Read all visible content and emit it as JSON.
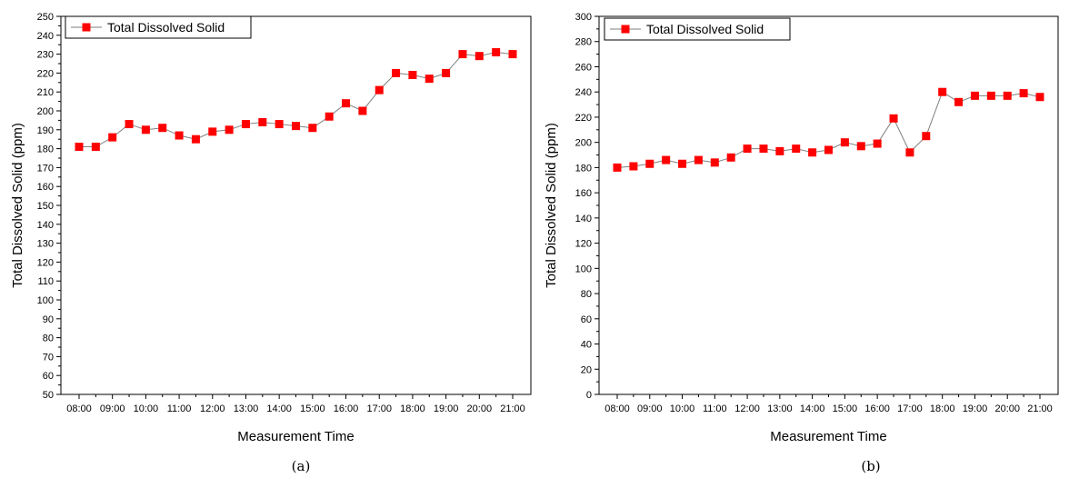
{
  "figure": {
    "captions": [
      "(a)",
      "(b)"
    ]
  },
  "chart_data": [
    {
      "type": "line",
      "title": "",
      "xlabel": "Measurement Time",
      "ylabel": "Total Dissolved Solid (ppm)",
      "x_tick_labels": [
        "08:00",
        "09:00",
        "10:00",
        "11:00",
        "12:00",
        "13:00",
        "14:00",
        "15:00",
        "16:00",
        "17:00",
        "18:00",
        "19:00",
        "20:00",
        "21:00"
      ],
      "x": [
        "08:00",
        "08:30",
        "09:00",
        "09:30",
        "10:00",
        "10:30",
        "11:00",
        "11:30",
        "12:00",
        "12:30",
        "13:00",
        "13:30",
        "14:00",
        "14:30",
        "15:00",
        "15:30",
        "16:00",
        "16:30",
        "17:00",
        "17:30",
        "18:00",
        "18:30",
        "19:00",
        "19:30",
        "20:00",
        "20:30",
        "21:00"
      ],
      "ylim": [
        50,
        250
      ],
      "y_ticks": [
        50,
        60,
        70,
        80,
        90,
        100,
        110,
        120,
        130,
        140,
        150,
        160,
        170,
        180,
        190,
        200,
        210,
        220,
        230,
        240,
        250
      ],
      "grid": false,
      "legend_position": "top-left",
      "series": [
        {
          "name": "Total Dissolved Solid",
          "color": "#ff0000",
          "line_color": "#7f7f7f",
          "marker": "square",
          "values": [
            181,
            181,
            186,
            193,
            190,
            191,
            187,
            185,
            189,
            190,
            193,
            194,
            193,
            192,
            191,
            197,
            204,
            200,
            211,
            220,
            219,
            217,
            220,
            230,
            229,
            231,
            230
          ]
        }
      ]
    },
    {
      "type": "line",
      "title": "",
      "xlabel": "Measurement Time",
      "ylabel": "Total Dissolved Solid (ppm)",
      "x_tick_labels": [
        "08:00",
        "09:00",
        "10:00",
        "11:00",
        "12:00",
        "13:00",
        "14:00",
        "15:00",
        "16:00",
        "17:00",
        "18:00",
        "19:00",
        "20:00",
        "21:00"
      ],
      "x": [
        "08:00",
        "08:30",
        "09:00",
        "09:30",
        "10:00",
        "10:30",
        "11:00",
        "11:30",
        "12:00",
        "12:30",
        "13:00",
        "13:30",
        "14:00",
        "14:30",
        "15:00",
        "15:30",
        "16:00",
        "16:30",
        "17:00",
        "17:30",
        "18:00",
        "18:30",
        "19:00",
        "19:30",
        "20:00",
        "20:30",
        "21:00"
      ],
      "ylim": [
        0,
        300
      ],
      "y_ticks": [
        0,
        20,
        40,
        60,
        80,
        100,
        120,
        140,
        160,
        180,
        200,
        220,
        240,
        260,
        280,
        300
      ],
      "grid": false,
      "legend_position": "top-left",
      "series": [
        {
          "name": "Total Dissolved Solid",
          "color": "#ff0000",
          "line_color": "#7f7f7f",
          "marker": "square",
          "values": [
            180,
            181,
            183,
            186,
            183,
            186,
            184,
            188,
            195,
            195,
            193,
            195,
            192,
            194,
            200,
            197,
            199,
            219,
            192,
            205,
            240,
            232,
            237,
            237,
            237,
            239,
            236
          ]
        }
      ]
    }
  ]
}
